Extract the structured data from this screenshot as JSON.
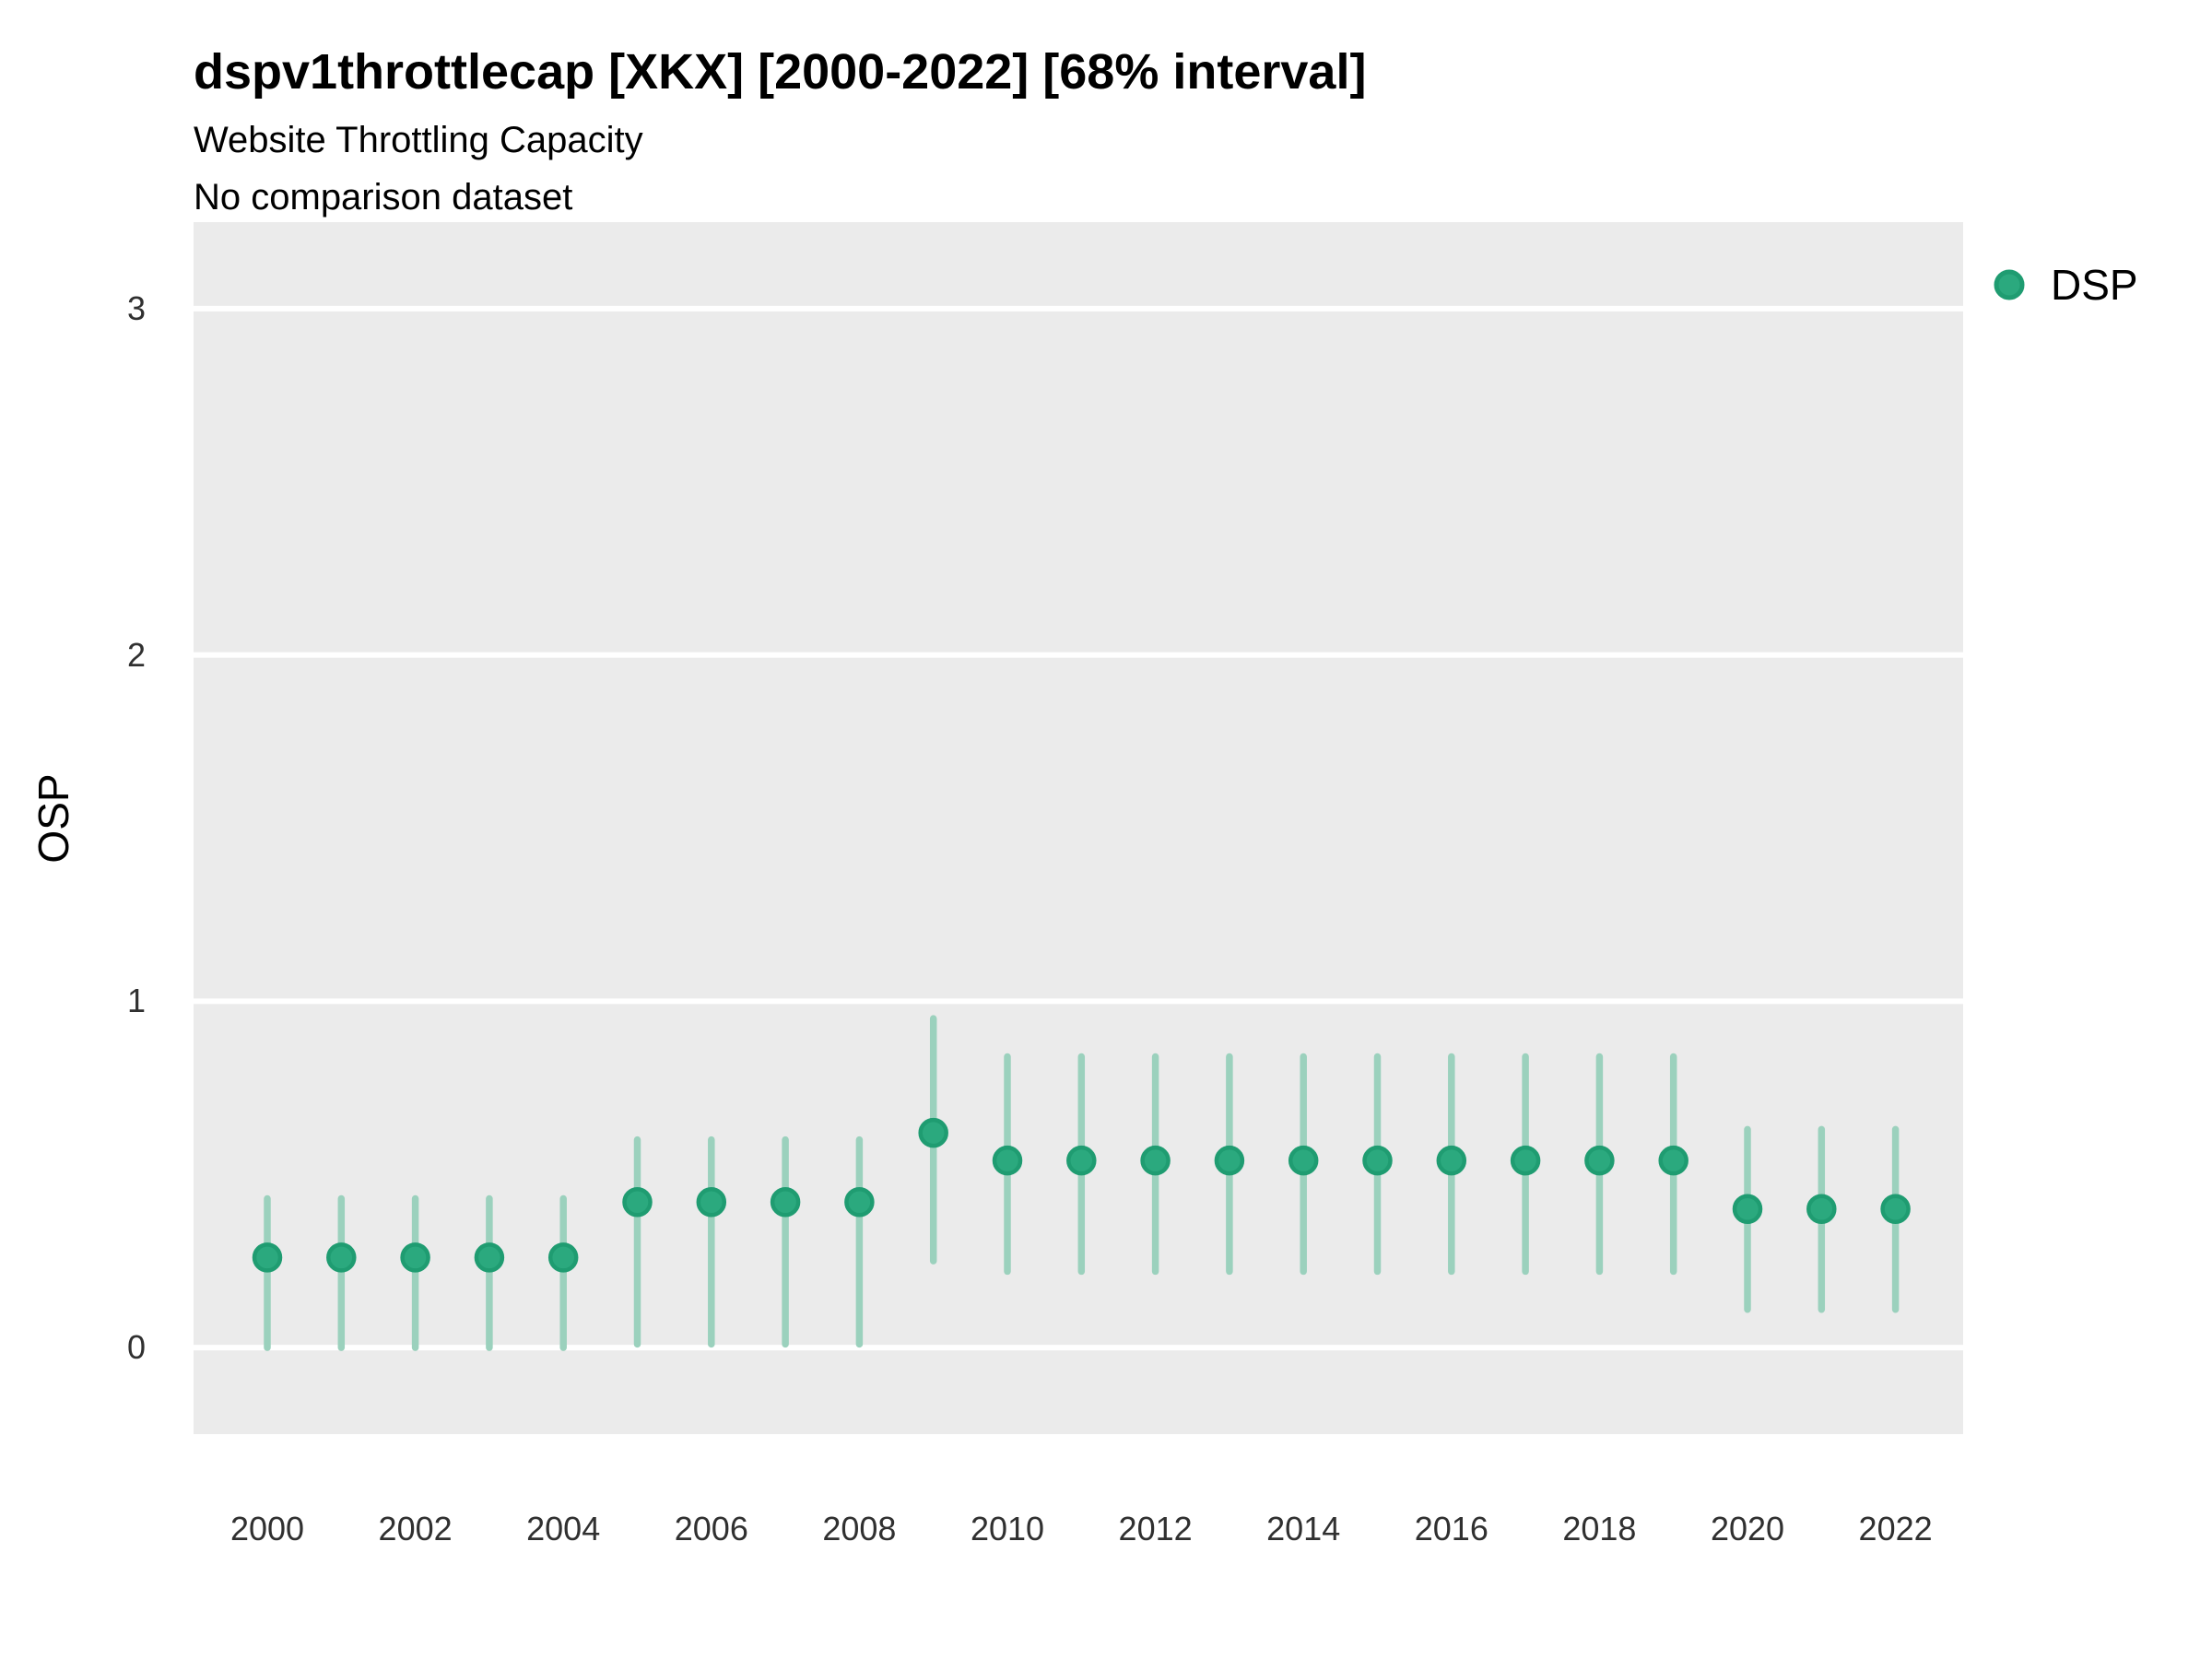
{
  "header": {
    "title": "dspv1throttlecap [XKX] [2000-2022] [68% interval]",
    "subtitle": "Website Throttling Capacity",
    "note": "No comparison dataset"
  },
  "legend": {
    "series_label": "DSP",
    "marker": "circle-icon",
    "position": "top-right"
  },
  "colors": {
    "point_fill": "#2BA97E",
    "point_stroke": "#1F9C71",
    "interval_bar": "#9BD1BD",
    "panel_background": "#EBEBEB",
    "gridline": "#FFFFFF",
    "title_text": "#000000",
    "tick_text": "#303030"
  },
  "chart_data": {
    "type": "scatter",
    "subtype": "pointrange",
    "title": "dspv1throttlecap [XKX] [2000-2022] [68% interval]",
    "subtitle": "Website Throttling Capacity",
    "note": "No comparison dataset",
    "interval_label": "68% interval",
    "xlabel": "",
    "ylabel": "OSP",
    "ylim": [
      -0.25,
      3.25
    ],
    "y_ticks": [
      0,
      1,
      2,
      3
    ],
    "x_tick_labels": [
      "2000",
      "2002",
      "2004",
      "2006",
      "2008",
      "2010",
      "2012",
      "2014",
      "2016",
      "2018",
      "2020",
      "2022"
    ],
    "grid": "horizontal-major-only",
    "legend_position": "top-right",
    "series": [
      {
        "name": "DSP",
        "x": [
          2000,
          2001,
          2002,
          2003,
          2004,
          2005,
          2006,
          2007,
          2008,
          2009,
          2010,
          2011,
          2012,
          2013,
          2014,
          2015,
          2016,
          2017,
          2018,
          2019,
          2020,
          2021,
          2022
        ],
        "points": [
          0.26,
          0.26,
          0.26,
          0.26,
          0.26,
          0.42,
          0.42,
          0.42,
          0.42,
          0.62,
          0.54,
          0.54,
          0.54,
          0.54,
          0.54,
          0.54,
          0.54,
          0.54,
          0.54,
          0.54,
          0.4,
          0.4,
          0.4
        ],
        "low": [
          0.0,
          0.0,
          0.0,
          0.0,
          0.0,
          0.01,
          0.01,
          0.01,
          0.01,
          0.25,
          0.22,
          0.22,
          0.22,
          0.22,
          0.22,
          0.22,
          0.22,
          0.22,
          0.22,
          0.22,
          0.11,
          0.11,
          0.11
        ],
        "high": [
          0.43,
          0.43,
          0.43,
          0.43,
          0.43,
          0.6,
          0.6,
          0.6,
          0.6,
          0.95,
          0.84,
          0.84,
          0.84,
          0.84,
          0.84,
          0.84,
          0.84,
          0.84,
          0.84,
          0.84,
          0.63,
          0.63,
          0.63
        ]
      }
    ]
  }
}
